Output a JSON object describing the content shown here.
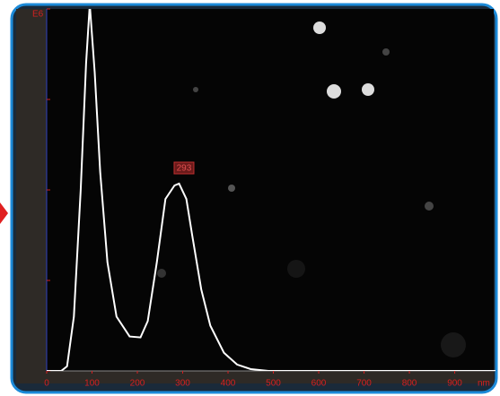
{
  "chart_data": {
    "type": "line",
    "y_unit": "E6",
    "x_unit": "nm",
    "x": [
      0,
      32,
      45,
      60,
      75,
      87,
      95,
      106,
      118,
      134,
      154,
      183,
      207,
      223,
      243,
      262,
      282,
      292,
      308,
      321,
      341,
      361,
      391,
      420,
      450,
      489,
      990
    ],
    "series": [
      {
        "color": "#ffffff",
        "values": [
          0,
          0,
          0.05,
          0.6,
          2.0,
          3.4,
          4.05,
          3.3,
          2.2,
          1.2,
          0.6,
          0.38,
          0.37,
          0.55,
          1.2,
          1.9,
          2.05,
          2.07,
          1.9,
          1.5,
          0.9,
          0.5,
          0.2,
          0.07,
          0.02,
          0,
          0
        ]
      }
    ],
    "xlim": [
      0,
      990
    ],
    "xticks": [
      0,
      100,
      200,
      300,
      400,
      500,
      600,
      700,
      800,
      900
    ],
    "ylim": [
      0,
      4
    ],
    "yticks": [
      0,
      1,
      2,
      3,
      4
    ],
    "annotations": [
      {
        "x": 293,
        "text": "293"
      }
    ],
    "tick_color": "#d42020"
  }
}
